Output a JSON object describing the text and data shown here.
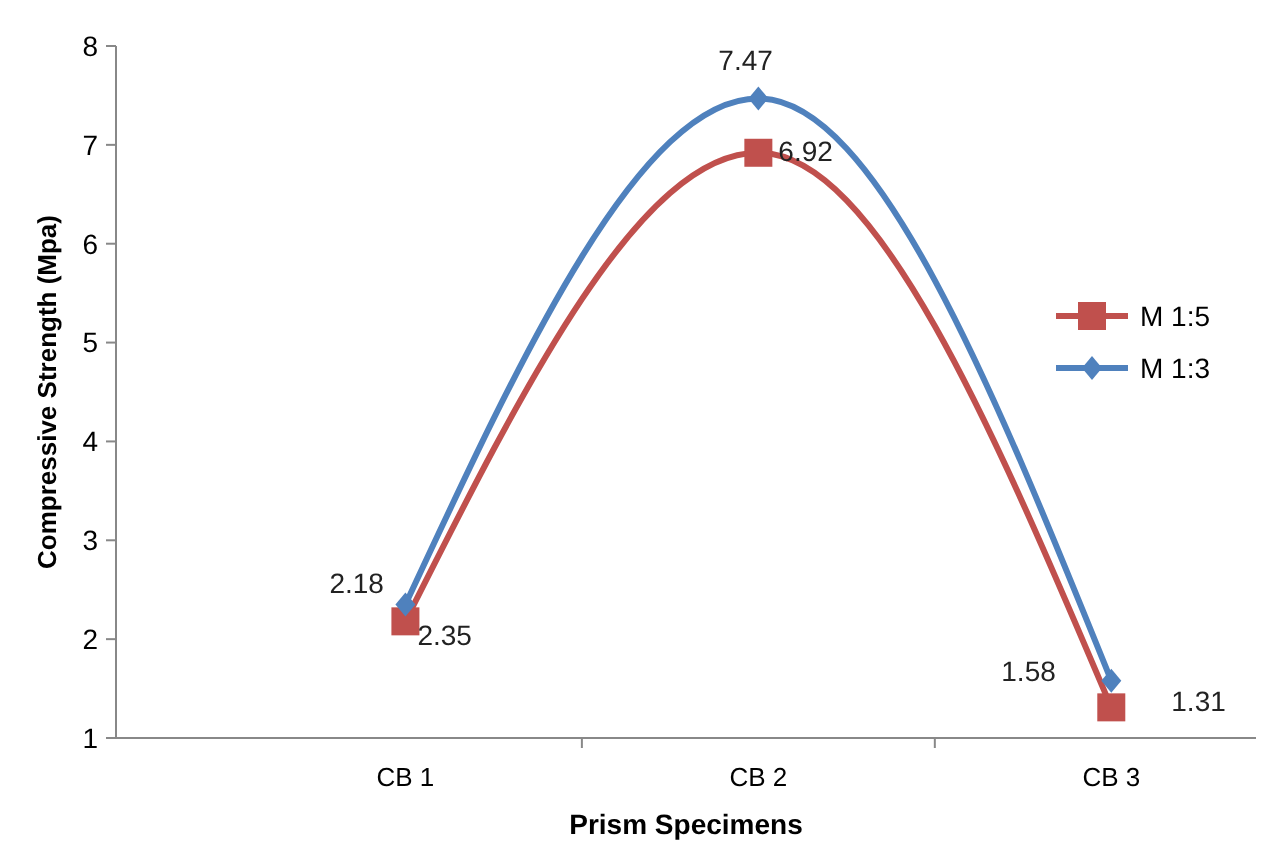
{
  "chart_data": {
    "type": "line",
    "xlabel": "Prism Specimens",
    "ylabel": "Compressive Strength (Mpa)",
    "categories": [
      "CB 1",
      "CB 2",
      "CB 3"
    ],
    "series": [
      {
        "name": "M 1:5",
        "color": "#c0504d",
        "marker": "square",
        "values": [
          2.18,
          6.92,
          1.31
        ]
      },
      {
        "name": "M 1:3",
        "color": "#4f81bd",
        "marker": "diamond",
        "values": [
          2.35,
          7.47,
          1.58
        ]
      }
    ],
    "ylim": [
      1,
      8
    ],
    "yticks": [
      1,
      2,
      3,
      4,
      5,
      6,
      7,
      8
    ],
    "grid": false,
    "legend": "right",
    "data_labels": true
  }
}
